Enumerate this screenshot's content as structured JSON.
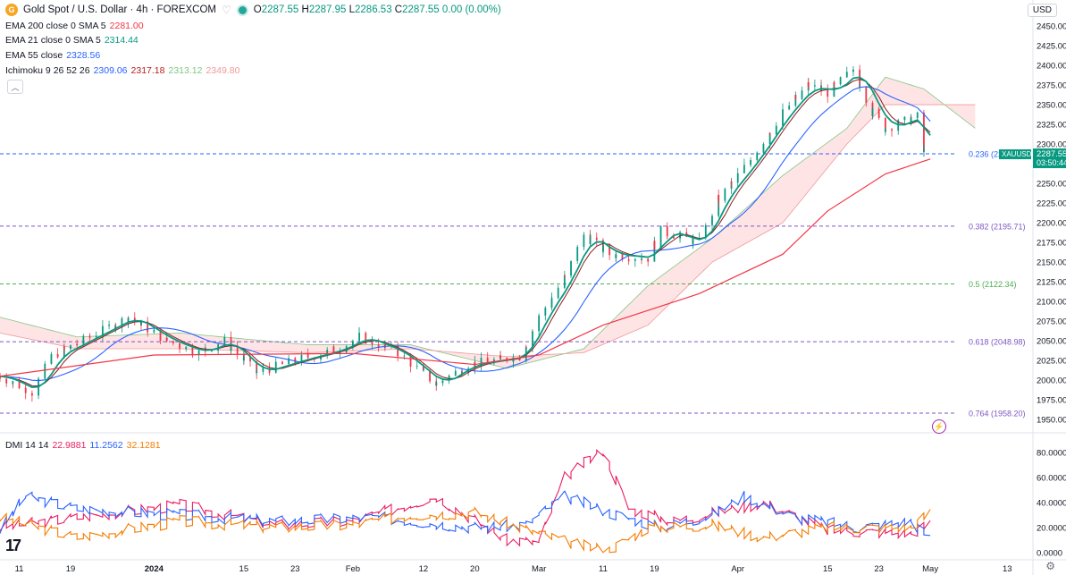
{
  "header": {
    "symbol_title": "Gold Spot / U.S. Dollar · 4h · FOREXCOM",
    "logo_text": "G",
    "ohlc": {
      "o_label": "O",
      "o": "2287.55",
      "h_label": "H",
      "h": "2287.95",
      "l_label": "L",
      "l": "2286.53",
      "c_label": "C",
      "c": "2287.55",
      "chg": "0.00 (0.00%)"
    },
    "currency_button": "USD"
  },
  "indicators": [
    {
      "label": "EMA 200 close 0 SMA 5",
      "value": "2281.00",
      "color": "#f23645"
    },
    {
      "label": "EMA 21 close 0 SMA 5",
      "value": "2314.44",
      "color": "#089981"
    },
    {
      "label": "EMA 55 close",
      "value": "2328.56",
      "color": "#2962ff"
    },
    {
      "label": "Ichimoku 9 26 52 26",
      "values": [
        "2309.06",
        "2317.18",
        "2313.12",
        "2349.80"
      ],
      "colors": [
        "#2962ff",
        "#b71c1c",
        "#81c784",
        "#ef9a9a"
      ]
    }
  ],
  "dmi": {
    "label": "DMI 14 14",
    "values": [
      "22.9881",
      "11.2562",
      "32.1281"
    ],
    "colors": [
      "#e91e63",
      "#2962ff",
      "#f57c00"
    ]
  },
  "fib_labels": [
    {
      "text": "0.236 (22…",
      "price": 2287.6,
      "color": "#2962ff"
    },
    {
      "text": "0.382 (2195.71)",
      "price": 2195.71,
      "color": "#7e57c2"
    },
    {
      "text": "0.5 (2122.34)",
      "price": 2122.34,
      "color": "#4caf50"
    },
    {
      "text": "0.618 (2048.98)",
      "price": 2048.98,
      "color": "#7e57c2"
    },
    {
      "text": "0.764 (1958.20)",
      "price": 1958.2,
      "color": "#7e57c2"
    }
  ],
  "price_tag": {
    "symbol": "XAUUSD",
    "price": "2287.55",
    "countdown": "03:50:44"
  },
  "chart_data": {
    "type": "candlestick",
    "price_axis": {
      "ticks": [
        1950,
        1975,
        2000,
        2025,
        2050,
        2075,
        2100,
        2125,
        2150,
        2175,
        2200,
        2225,
        2250,
        2275,
        2300,
        2325,
        2350,
        2375,
        2400,
        2425,
        2450
      ],
      "tick_labels": [
        "1950.00",
        "1975.00",
        "2000.00",
        "2025.00",
        "2050.00",
        "2075.00",
        "2100.00",
        "2125.00",
        "2150.00",
        "2175.00",
        "2200.00",
        "2225.00",
        "2250.00",
        "2275.00",
        "2300.00",
        "2325.00",
        "2350.00",
        "2375.00",
        "2400.00",
        "2425.00",
        "2450.00"
      ],
      "range": [
        1940,
        2458
      ]
    },
    "dmi_axis": {
      "ticks": [
        0,
        20,
        40,
        60,
        80
      ],
      "tick_labels": [
        "0.0000",
        "20.0000",
        "40.0000",
        "60.0000",
        "80.0000"
      ],
      "range": [
        -3,
        90
      ]
    },
    "time_labels": [
      "11",
      "19",
      "2024",
      "15",
      "23",
      "Feb",
      "12",
      "20",
      "Mar",
      "11",
      "19",
      "Apr",
      "15",
      "23",
      "May",
      "13"
    ],
    "time_label_dates": [
      "2023-12-11",
      "2023-12-19",
      "2024-01-01",
      "2024-01-15",
      "2024-01-23",
      "2024-02-01",
      "2024-02-12",
      "2024-02-20",
      "2024-03-01",
      "2024-03-11",
      "2024-03-19",
      "2024-04-01",
      "2024-04-15",
      "2024-04-23",
      "2024-05-01",
      "2024-05-13"
    ],
    "price_path": [
      [
        "2023-12-08",
        2005
      ],
      [
        "2023-12-13",
        1985
      ],
      [
        "2023-12-16",
        2030
      ],
      [
        "2023-12-22",
        2055
      ],
      [
        "2023-12-28",
        2080
      ],
      [
        "2024-01-03",
        2050
      ],
      [
        "2024-01-08",
        2035
      ],
      [
        "2024-01-12",
        2050
      ],
      [
        "2024-01-17",
        2010
      ],
      [
        "2024-01-23",
        2025
      ],
      [
        "2024-01-30",
        2040
      ],
      [
        "2024-02-02",
        2055
      ],
      [
        "2024-02-08",
        2035
      ],
      [
        "2024-02-14",
        1995
      ],
      [
        "2024-02-19",
        2020
      ],
      [
        "2024-02-27",
        2030
      ],
      [
        "2024-03-01",
        2080
      ],
      [
        "2024-03-05",
        2130
      ],
      [
        "2024-03-08",
        2185
      ],
      [
        "2024-03-12",
        2160
      ],
      [
        "2024-03-18",
        2155
      ],
      [
        "2024-03-20",
        2190
      ],
      [
        "2024-03-26",
        2175
      ],
      [
        "2024-03-29",
        2230
      ],
      [
        "2024-04-03",
        2280
      ],
      [
        "2024-04-08",
        2340
      ],
      [
        "2024-04-12",
        2375
      ],
      [
        "2024-04-15",
        2365
      ],
      [
        "2024-04-19",
        2395
      ],
      [
        "2024-04-22",
        2340
      ],
      [
        "2024-04-24",
        2320
      ],
      [
        "2024-04-29",
        2335
      ],
      [
        "2024-04-30",
        2290
      ],
      [
        "2024-05-01",
        2287.55
      ]
    ],
    "ema200_path": [
      [
        "2023-12-08",
        2005
      ],
      [
        "2024-01-01",
        2032
      ],
      [
        "2024-02-01",
        2034
      ],
      [
        "2024-02-20",
        2020
      ],
      [
        "2024-03-01",
        2032
      ],
      [
        "2024-03-11",
        2070
      ],
      [
        "2024-03-26",
        2110
      ],
      [
        "2024-04-08",
        2160
      ],
      [
        "2024-04-15",
        2215
      ],
      [
        "2024-04-24",
        2262
      ],
      [
        "2024-05-01",
        2281
      ]
    ],
    "ichimoku_cloud_a": [
      [
        "2023-12-08",
        2080
      ],
      [
        "2023-12-20",
        2055
      ],
      [
        "2024-01-05",
        2060
      ],
      [
        "2024-01-25",
        2045
      ],
      [
        "2024-02-10",
        2045
      ],
      [
        "2024-02-25",
        2015
      ],
      [
        "2024-03-08",
        2040
      ],
      [
        "2024-03-18",
        2120
      ],
      [
        "2024-03-28",
        2180
      ],
      [
        "2024-04-08",
        2260
      ],
      [
        "2024-04-18",
        2320
      ],
      [
        "2024-04-24",
        2385
      ],
      [
        "2024-04-30",
        2370
      ],
      [
        "2024-05-08",
        2320
      ]
    ],
    "ichimoku_cloud_b": [
      [
        "2023-12-08",
        2060
      ],
      [
        "2023-12-20",
        2040
      ],
      [
        "2024-01-05",
        2040
      ],
      [
        "2024-01-25",
        2035
      ],
      [
        "2024-02-10",
        2040
      ],
      [
        "2024-02-25",
        2030
      ],
      [
        "2024-03-08",
        2035
      ],
      [
        "2024-03-18",
        2070
      ],
      [
        "2024-03-28",
        2150
      ],
      [
        "2024-04-08",
        2200
      ],
      [
        "2024-04-18",
        2300
      ],
      [
        "2024-04-24",
        2350
      ],
      [
        "2024-04-30",
        2350
      ],
      [
        "2024-05-08",
        2350
      ]
    ],
    "dmi_plus_path": [
      [
        "2023-12-08",
        18
      ],
      [
        "2023-12-12",
        45
      ],
      [
        "2023-12-20",
        35
      ],
      [
        "2024-01-05",
        30
      ],
      [
        "2024-01-20",
        25
      ],
      [
        "2024-02-05",
        28
      ],
      [
        "2024-02-20",
        20
      ],
      [
        "2024-02-28",
        22
      ],
      [
        "2024-03-05",
        45
      ],
      [
        "2024-03-12",
        32
      ],
      [
        "2024-03-20",
        20
      ],
      [
        "2024-03-28",
        30
      ],
      [
        "2024-04-02",
        45
      ],
      [
        "2024-04-10",
        28
      ],
      [
        "2024-04-20",
        20
      ],
      [
        "2024-04-28",
        25
      ],
      [
        "2024-05-01",
        11
      ]
    ],
    "dmi_minus_path": [
      [
        "2023-12-08",
        20
      ],
      [
        "2023-12-20",
        28
      ],
      [
        "2024-01-05",
        38
      ],
      [
        "2024-01-20",
        22
      ],
      [
        "2024-02-01",
        25
      ],
      [
        "2024-02-14",
        45
      ],
      [
        "2024-02-25",
        10
      ],
      [
        "2024-03-01",
        8
      ],
      [
        "2024-03-05",
        60
      ],
      [
        "2024-03-11",
        82
      ],
      [
        "2024-03-15",
        35
      ],
      [
        "2024-03-22",
        25
      ],
      [
        "2024-04-05",
        40
      ],
      [
        "2024-04-15",
        18
      ],
      [
        "2024-04-28",
        15
      ],
      [
        "2024-05-01",
        23
      ]
    ],
    "adx_path": [
      [
        "2023-12-08",
        28
      ],
      [
        "2023-12-20",
        12
      ],
      [
        "2024-01-05",
        25
      ],
      [
        "2024-01-20",
        20
      ],
      [
        "2024-02-01",
        22
      ],
      [
        "2024-02-10",
        30
      ],
      [
        "2024-02-20",
        32
      ],
      [
        "2024-03-01",
        15
      ],
      [
        "2024-03-08",
        5
      ],
      [
        "2024-03-12",
        2
      ],
      [
        "2024-03-18",
        20
      ],
      [
        "2024-03-28",
        22
      ],
      [
        "2024-04-05",
        12
      ],
      [
        "2024-04-15",
        20
      ],
      [
        "2024-04-28",
        20
      ],
      [
        "2024-05-01",
        32
      ]
    ]
  },
  "colors": {
    "ema21": "#089981",
    "ema55": "#2962ff",
    "ema200": "#f23645",
    "bull": "#089981",
    "bear": "#f23645",
    "cloud_up": "#c8e6c9",
    "cloud_down": "#ffcdd2",
    "grid": "#f0f3fa",
    "axis_text": "#131722"
  },
  "icons": [
    "heart-icon",
    "status-dot-icon",
    "collapse-chevron-icon",
    "lightning-icon",
    "gear-icon",
    "tradingview-logo"
  ]
}
